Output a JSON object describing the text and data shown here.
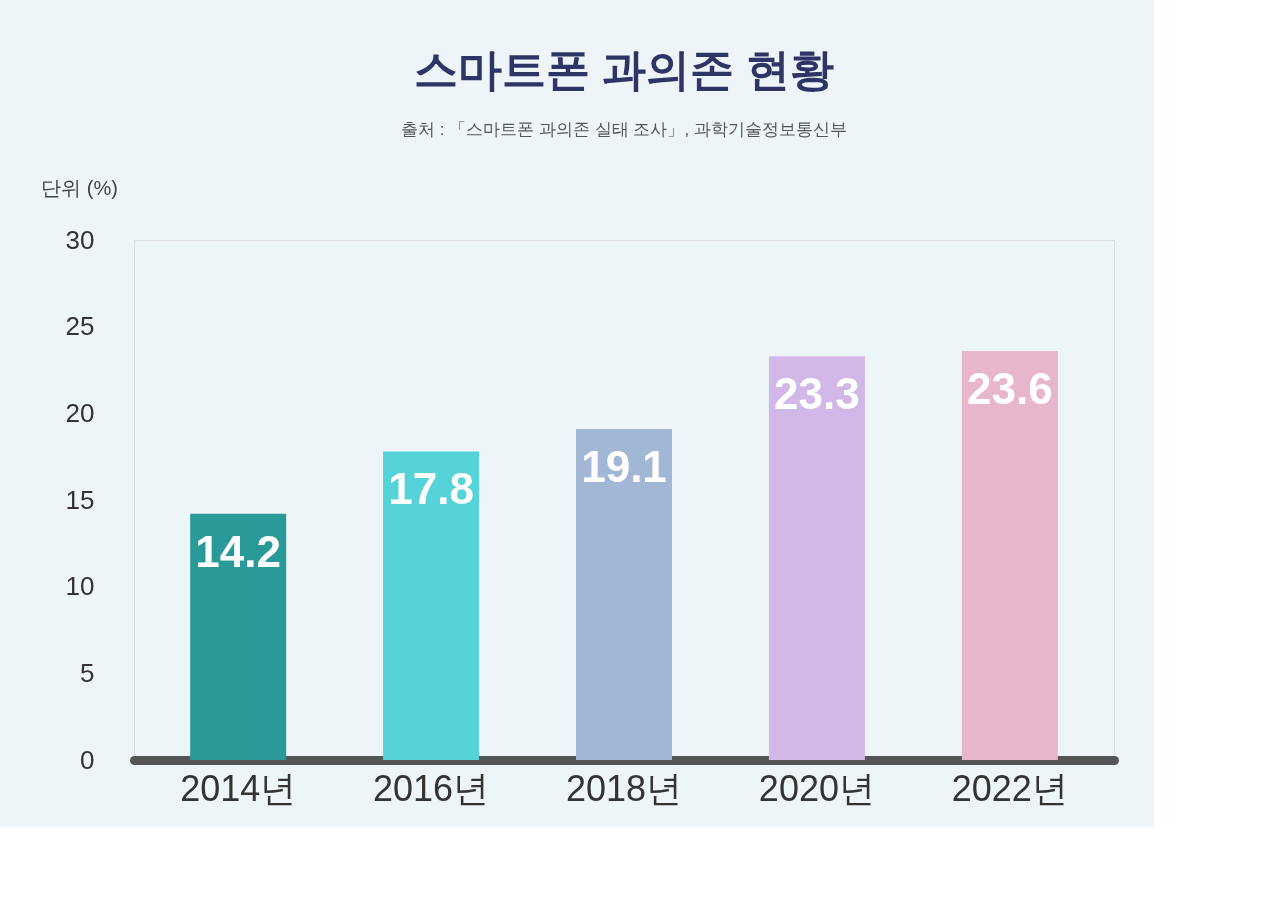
{
  "chart_data": {
    "type": "bar",
    "title": "스마트폰 과의존 현황",
    "subtitle": "출처 : 「스마트폰 과의존 실태 조사」, 과학기술정보통신부",
    "ylabel": "단위 (%)",
    "categories": [
      "2014년",
      "2016년",
      "2018년",
      "2020년",
      "2022년"
    ],
    "values": [
      14.2,
      17.8,
      19.1,
      23.3,
      23.6
    ],
    "colors": [
      "#2a9a98",
      "#55d3d8",
      "#a2b6d6",
      "#d2b8e8",
      "#e8b6cc"
    ],
    "ylim": [
      0,
      30
    ],
    "yticks": [
      0,
      5,
      10,
      15,
      20,
      25,
      30
    ],
    "grid": false,
    "legend": false,
    "data_labels": true
  }
}
